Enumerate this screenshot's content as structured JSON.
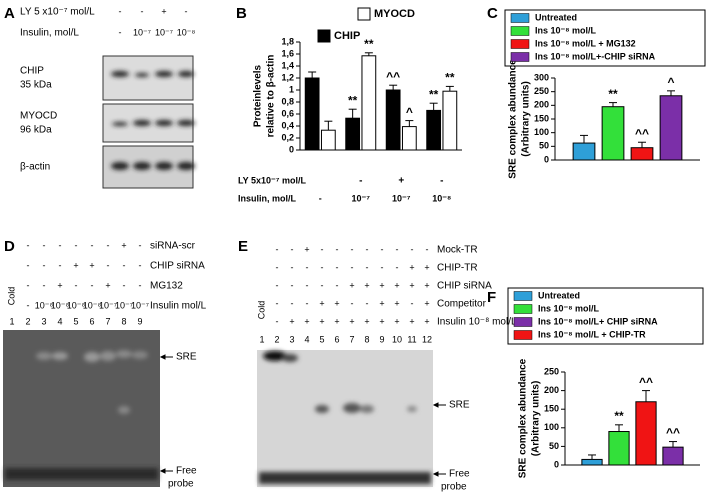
{
  "panel_a": {
    "letter": "A",
    "rows": [
      {
        "label": "LY 5 x10⁻⁷ mol/L",
        "marks": [
          "-",
          "-",
          "+",
          "-"
        ]
      },
      {
        "label": "Insulin, mol/L",
        "marks": [
          "-",
          "10⁻⁷",
          "10⁻⁷",
          "10⁻⁸"
        ]
      }
    ],
    "blots": [
      [
        "CHIP",
        "35 kDa"
      ],
      [
        "MYOCD",
        "96 kDa"
      ],
      [
        "β-actin"
      ]
    ]
  },
  "panel_d": {
    "letter": "D",
    "rows": [
      {
        "label": "siRNA-scr",
        "marks": [
          "-",
          "-",
          "-",
          "-",
          "-",
          "-",
          "+",
          "-"
        ]
      },
      {
        "label": "CHIP siRNA",
        "marks": [
          "-",
          "-",
          "-",
          "+",
          "+",
          "-",
          "-",
          "-"
        ]
      },
      {
        "label": "MG132",
        "marks": [
          "-",
          "-",
          "+",
          "-",
          "-",
          "+",
          "-",
          "-"
        ]
      },
      {
        "label": "Insulin mol/L",
        "marks": [
          "-",
          "10⁻⁸",
          "10⁻⁸",
          "10⁻⁸",
          "10⁻⁸",
          "10⁻⁷",
          "10⁻⁷",
          "10⁻⁷"
        ]
      }
    ],
    "cold": "Cold",
    "lanes": [
      1,
      2,
      3,
      4,
      5,
      6,
      7,
      8,
      9
    ],
    "sre": "SRE",
    "free_probe": [
      "Free",
      "probe"
    ]
  },
  "panel_e": {
    "letter": "E",
    "rows": [
      {
        "label": "Mock-TR",
        "marks": [
          "-",
          "-",
          "+",
          "-",
          "-",
          "-",
          "-",
          "-",
          "-",
          "-",
          "-"
        ]
      },
      {
        "label": "CHIP-TR",
        "marks": [
          "-",
          "-",
          "-",
          "-",
          "-",
          "-",
          "-",
          "-",
          "-",
          "+",
          "+"
        ]
      },
      {
        "label": "CHIP siRNA",
        "marks": [
          "-",
          "-",
          "-",
          "-",
          "-",
          "+",
          "+",
          "+",
          "+",
          "+",
          "+"
        ]
      },
      {
        "label": "Competitor",
        "marks": [
          "-",
          "-",
          "-",
          "+",
          "+",
          "-",
          "-",
          "+",
          "+",
          "-",
          "+"
        ]
      },
      {
        "label": "Insulin 10⁻⁸ mol/L",
        "marks": [
          "-",
          "+",
          "+",
          "+",
          "+",
          "+",
          "+",
          "+",
          "+",
          "+",
          "+"
        ]
      }
    ],
    "cold": "Cold",
    "lanes": [
      1,
      2,
      3,
      4,
      5,
      6,
      7,
      8,
      9,
      10,
      11,
      12
    ],
    "sre": "SRE",
    "free_probe": [
      "Free",
      "probe"
    ]
  },
  "chart_data": [
    {
      "type": "bar",
      "panel": "B",
      "ylabel": [
        "Proteinlevels",
        "relative to β-actin"
      ],
      "ylim": [
        0,
        1.8
      ],
      "yticks": [
        0,
        {
          "value": 0.2,
          "label": "0,2"
        },
        {
          "value": 0.4,
          "label": "0,4"
        },
        {
          "value": 0.6,
          "label": "0,6"
        },
        {
          "value": 0.8,
          "label": "0,8"
        },
        1,
        {
          "value": 1.2,
          "label": "1,2"
        },
        {
          "value": 1.4,
          "label": "1,4"
        },
        {
          "value": 1.6,
          "label": "1,6"
        },
        {
          "value": 1.8,
          "label": "1,8"
        }
      ],
      "x_label": "Insulin, mol/L",
      "categories": [
        "-",
        "10⁻⁷",
        "10⁻⁷",
        "10⁻⁸"
      ],
      "ly_label": "LY 5x10⁻⁷ mol/L",
      "ly": [
        null,
        "-",
        "+",
        "-"
      ],
      "series": [
        {
          "name": "CHIP",
          "color": "#000000",
          "values": [
            1.2,
            0.53,
            1.0,
            0.66
          ],
          "errors": [
            0.1,
            0.15,
            0.08,
            0.12
          ],
          "annotations": [
            null,
            "**",
            "^^",
            "**"
          ]
        },
        {
          "name": "MYOCD",
          "color": "#ffffff",
          "values": [
            0.33,
            1.57,
            0.39,
            0.98
          ],
          "errors": [
            0.15,
            0.05,
            0.1,
            0.08
          ],
          "annotations": [
            null,
            "**",
            "^",
            "**"
          ]
        }
      ]
    },
    {
      "type": "bar",
      "panel": "C",
      "ylabel": [
        "SRE complex abundance",
        "(Arbitrary units)"
      ],
      "ylim": [
        0,
        300
      ],
      "yticks": [
        0,
        50,
        100,
        150,
        200,
        250,
        300
      ],
      "categories": [
        null
      ],
      "series": [
        {
          "name": "Untreated",
          "color": "#2e9fd8",
          "values": [
            62
          ],
          "errors": [
            28
          ],
          "annotations": [
            null
          ]
        },
        {
          "name": "Ins 10⁻⁸ mol/L",
          "color": "#33e03a",
          "values": [
            195
          ],
          "errors": [
            15
          ],
          "annotations": [
            "**"
          ]
        },
        {
          "name": "Ins 10⁻⁸ mol/L + MG132",
          "color": "#f01414",
          "values": [
            45
          ],
          "errors": [
            20
          ],
          "annotations": [
            "^^"
          ]
        },
        {
          "name": "Ins 10⁻⁸ mol/L+-CHIP siRNA",
          "color": "#7b2fa8",
          "values": [
            235
          ],
          "errors": [
            18
          ],
          "annotations": [
            "^"
          ]
        }
      ]
    },
    {
      "type": "bar",
      "panel": "F",
      "ylabel": [
        "SRE complex abundance",
        "(Arbitrary units)"
      ],
      "ylim": [
        0,
        250
      ],
      "yticks": [
        0,
        50,
        100,
        150,
        200,
        250
      ],
      "categories": [
        null
      ],
      "series": [
        {
          "name": "Untreated",
          "color": "#2e9fd8",
          "values": [
            15
          ],
          "errors": [
            12
          ],
          "annotations": [
            null
          ]
        },
        {
          "name": "Ins 10⁻⁸ mol/L",
          "color": "#33e03a",
          "values": [
            90
          ],
          "errors": [
            18
          ],
          "annotations": [
            "**"
          ]
        },
        {
          "name": "Ins 10⁻⁸ mol/L + CHIP-TR",
          "color": "#f01414",
          "values": [
            170
          ],
          "errors": [
            30
          ],
          "annotations": [
            "^^"
          ]
        },
        {
          "name": "Ins 10⁻⁸ mol/L+ CHIP siRNA",
          "color": "#7b2fa8",
          "values": [
            48
          ],
          "errors": [
            15
          ],
          "annotations": [
            "^^"
          ]
        }
      ]
    }
  ]
}
